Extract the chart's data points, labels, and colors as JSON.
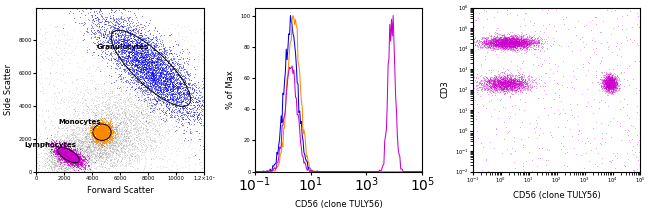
{
  "panel1": {
    "xlabel": "Forward Scatter",
    "ylabel": "Side Scatter",
    "xlim": [
      0,
      12000
    ],
    "ylim": [
      0,
      10000
    ],
    "granulocytes_label": "Granulocytes",
    "monocytes_label": "Monocytes",
    "lymphocytes_label": "Lymphocytes",
    "granulocytes_color": "#0000ee",
    "monocytes_color": "#ff8800",
    "lymphocytes_color": "#cc00cc",
    "scatter_color": "#999999",
    "background_color": "#ffffff"
  },
  "panel2": {
    "xlabel": "CD56 (clone TULY56)",
    "ylabel": "% of Max",
    "ylim": [
      0,
      105
    ],
    "line_colors": [
      "#0000ee",
      "#ff8800",
      "#cc00cc"
    ],
    "background_color": "#ffffff"
  },
  "panel3": {
    "xlabel": "CD56 (clone TULY56)",
    "ylabel": "CD3",
    "scatter_color": "#cc00cc",
    "background_color": "#ffffff"
  }
}
